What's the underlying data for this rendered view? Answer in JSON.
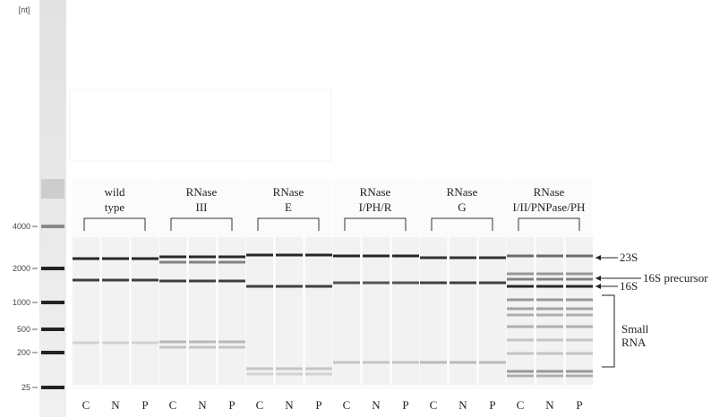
{
  "ladder": {
    "unit": "[nt]",
    "labels": [
      "4000",
      "2000",
      "1000",
      "500",
      "200",
      "25"
    ]
  },
  "groups": [
    {
      "label": [
        "wild",
        "type"
      ],
      "lanes": [
        "C",
        "N",
        "P"
      ]
    },
    {
      "label": [
        "RNase",
        "III"
      ],
      "lanes": [
        "C",
        "N",
        "P"
      ]
    },
    {
      "label": [
        "RNase",
        "E"
      ],
      "lanes": [
        "C",
        "N",
        "P"
      ]
    },
    {
      "label": [
        "RNase",
        "I/PH/R"
      ],
      "lanes": [
        "C",
        "N",
        "P"
      ]
    },
    {
      "label": [
        "RNase",
        "G"
      ],
      "lanes": [
        "C",
        "N",
        "P"
      ]
    },
    {
      "label": [
        "RNase",
        "I/II/PNPase/PH"
      ],
      "lanes": [
        "C",
        "N",
        "P"
      ]
    }
  ],
  "annotations": {
    "s23": "23S",
    "precursor": "16S precursor",
    "s16": "16S",
    "small": [
      "Small",
      "RNA"
    ]
  }
}
